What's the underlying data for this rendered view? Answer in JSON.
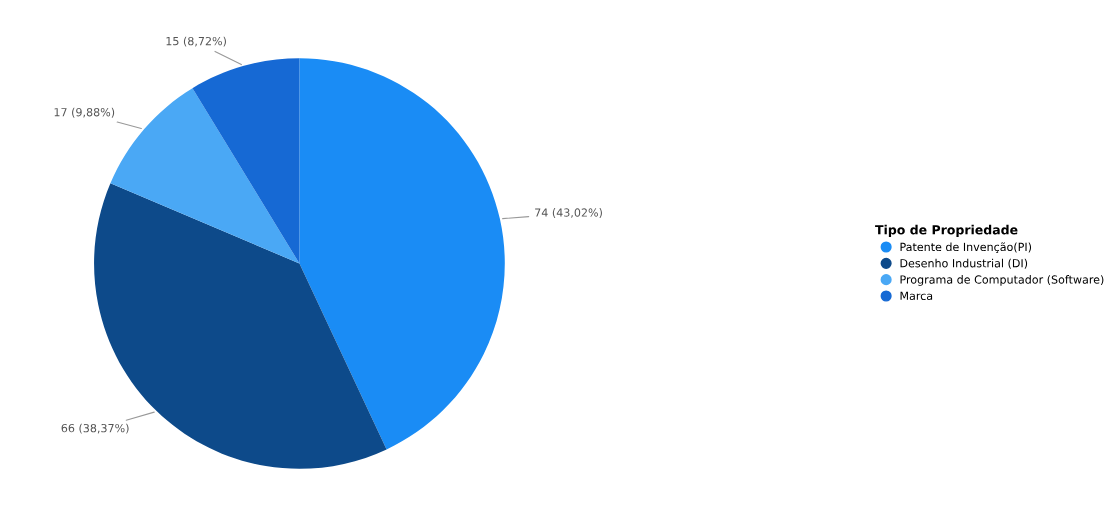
{
  "chart_data": {
    "type": "pie",
    "legend_title": "Tipo de Propriedade",
    "categories": [
      "Patente de Invenção(PI)",
      "Desenho Industrial (DI)",
      "Programa de Computador (Software)",
      "Marca"
    ],
    "values": [
      74,
      66,
      17,
      15
    ],
    "colors": [
      "#1a8cf5",
      "#0d4a8a",
      "#4aa8f5",
      "#1669d4"
    ],
    "value_labels": [
      "74 (43,02%)",
      "66 (38,37%)",
      "17 (9,88%)",
      "15 (8,72%)"
    ],
    "legend": "right"
  }
}
